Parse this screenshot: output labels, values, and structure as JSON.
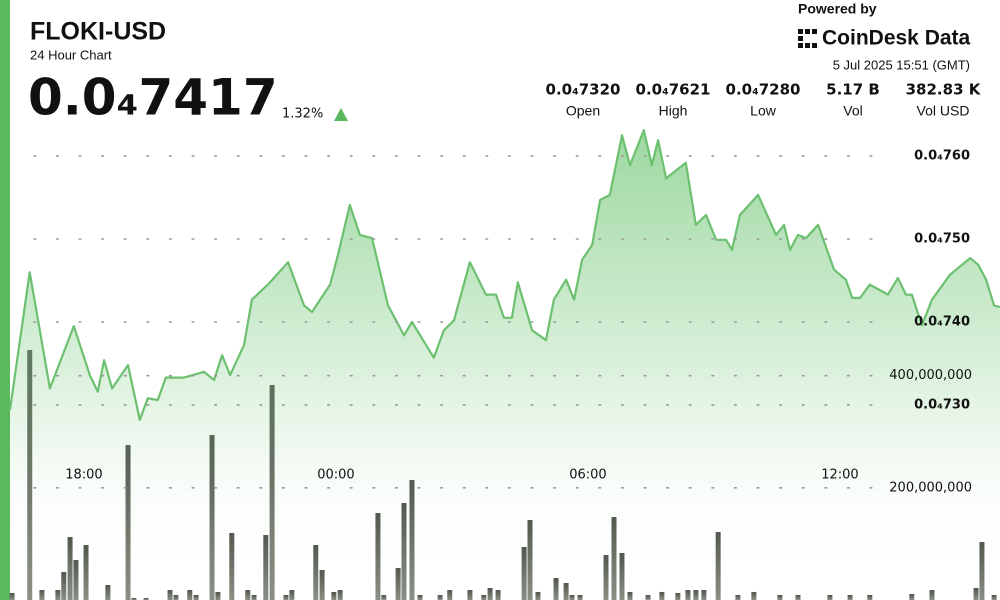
{
  "chart_data": {
    "type": "line",
    "title": "FLOKI-USD",
    "subtitle": "24 Hour Chart",
    "price": "0.0₄7417",
    "change": "1.32%",
    "powered_by": "Powered by",
    "brand": "CoinDesk Data",
    "timestamp": "5 Jul 2025 15:51 (GMT)",
    "stats": [
      {
        "value": "0.0₄7320",
        "label": "Open"
      },
      {
        "value": "0.0₄7621",
        "label": "High"
      },
      {
        "value": "0.0₄7280",
        "label": "Low"
      },
      {
        "value": "5.17 B",
        "label": "Vol"
      },
      {
        "value": "382.83 K",
        "label": "Vol USD"
      }
    ],
    "xlim": [
      16.24,
      39.81
    ],
    "xticks": [
      {
        "value": 18,
        "label": "18:00"
      },
      {
        "value": 24,
        "label": "00:00"
      },
      {
        "value": 30,
        "label": "06:00"
      },
      {
        "value": 36,
        "label": "12:00"
      }
    ],
    "ylim": [
      7.065e-05,
      7.788e-05
    ],
    "yticks": [
      {
        "value": 7.3e-05,
        "label": "0.0₄730"
      },
      {
        "value": 7.4e-05,
        "label": "0.0₄740"
      },
      {
        "value": 7.5e-05,
        "label": "0.0₄750"
      },
      {
        "value": 7.6e-05,
        "label": "0.0₄760"
      }
    ],
    "y2lim": [
      0,
      1070000000
    ],
    "y2ticks": [
      {
        "value": 200000000,
        "label": "200,000,000"
      },
      {
        "value": 400000000,
        "label": "400,000,000"
      }
    ],
    "grid": true,
    "series": [
      {
        "name": "Price",
        "type": "line",
        "color": "#6cc070",
        "x": [
          16.24,
          16.71,
          17.19,
          17.76,
          18.14,
          18.33,
          18.48,
          18.67,
          19.05,
          19.33,
          19.52,
          19.76,
          19.95,
          20.38,
          20.86,
          21.1,
          21.29,
          21.48,
          21.81,
          22.0,
          22.38,
          22.86,
          23.24,
          23.43,
          23.86,
          24.05,
          24.33,
          24.57,
          24.86,
          25.24,
          25.62,
          25.81,
          26.33,
          26.57,
          26.81,
          27.19,
          27.57,
          27.81,
          28.0,
          28.19,
          28.33,
          28.67,
          29.0,
          29.19,
          29.48,
          29.67,
          29.86,
          30.1,
          30.29,
          30.52,
          30.81,
          31.0,
          31.33,
          31.52,
          31.67,
          31.86,
          32.33,
          32.57,
          32.81,
          33.05,
          33.29,
          33.43,
          33.62,
          34.05,
          34.48,
          34.67,
          34.81,
          35.0,
          35.19,
          35.48,
          35.86,
          36.14,
          36.29,
          36.48,
          36.71,
          37.14,
          37.38,
          37.57,
          37.71,
          37.95,
          38.19,
          38.62,
          39.1,
          39.29,
          39.48,
          39.67,
          39.81
        ],
        "values": [
          7.294e-05,
          7.46e-05,
          7.32e-05,
          7.395e-05,
          7.336e-05,
          7.316e-05,
          7.354e-05,
          7.32e-05,
          7.348e-05,
          7.282e-05,
          7.308e-05,
          7.306e-05,
          7.333e-05,
          7.333e-05,
          7.34e-05,
          7.33e-05,
          7.36e-05,
          7.336e-05,
          7.372e-05,
          7.427e-05,
          7.445e-05,
          7.472e-05,
          7.42e-05,
          7.412e-05,
          7.445e-05,
          7.481e-05,
          7.541e-05,
          7.505e-05,
          7.501e-05,
          7.42e-05,
          7.384e-05,
          7.4e-05,
          7.357e-05,
          7.39e-05,
          7.402e-05,
          7.472e-05,
          7.433e-05,
          7.433e-05,
          7.405e-05,
          7.405e-05,
          7.448e-05,
          7.39e-05,
          7.378e-05,
          7.427e-05,
          7.451e-05,
          7.427e-05,
          7.475e-05,
          7.493e-05,
          7.547e-05,
          7.553e-05,
          7.625e-05,
          7.589e-05,
          7.631e-05,
          7.589e-05,
          7.619e-05,
          7.573e-05,
          7.592e-05,
          7.517e-05,
          7.529e-05,
          7.499e-05,
          7.499e-05,
          7.487e-05,
          7.529e-05,
          7.553e-05,
          7.505e-05,
          7.517e-05,
          7.487e-05,
          7.505e-05,
          7.501e-05,
          7.517e-05,
          7.463e-05,
          7.451e-05,
          7.429e-05,
          7.429e-05,
          7.445e-05,
          7.433e-05,
          7.453e-05,
          7.433e-05,
          7.433e-05,
          7.396e-05,
          7.427e-05,
          7.457e-05,
          7.477e-05,
          7.469e-05,
          7.451e-05,
          7.42e-05,
          7.418e-05
        ]
      },
      {
        "name": "Volume",
        "type": "bar",
        "axis": "y2",
        "color": "#5d635a",
        "x": [
          16.29,
          16.71,
          17.0,
          17.38,
          17.52,
          17.67,
          17.81,
          18.05,
          18.57,
          19.05,
          19.19,
          19.48,
          20.05,
          20.19,
          20.52,
          20.67,
          21.05,
          21.19,
          21.52,
          21.9,
          22.05,
          22.33,
          22.48,
          22.81,
          22.95,
          23.52,
          23.67,
          23.95,
          24.1,
          25.0,
          25.14,
          25.48,
          25.62,
          25.81,
          26.0,
          26.48,
          26.71,
          27.19,
          27.52,
          27.67,
          27.86,
          28.48,
          28.62,
          28.81,
          29.24,
          29.48,
          29.62,
          29.81,
          30.43,
          30.62,
          30.81,
          31.0,
          31.43,
          31.76,
          32.14,
          32.38,
          32.57,
          32.76,
          33.1,
          33.57,
          33.95,
          34.57,
          35.0,
          35.76,
          36.24,
          36.71,
          37.71,
          38.19,
          39.24,
          39.38,
          39.67
        ],
        "values": [
          12500000,
          445800000,
          17800000,
          17800000,
          49900000,
          112300000,
          71300000,
          98100000,
          26700000,
          276400000,
          3600000,
          3600000,
          17800000,
          8900000,
          17800000,
          8900000,
          294200000,
          14300000,
          119500000,
          17800000,
          8900000,
          115900000,
          383400000,
          8900000,
          17800000,
          98100000,
          53500000,
          14300000,
          17800000,
          155100000,
          8900000,
          57100000,
          173000000,
          214000000,
          8900000,
          8900000,
          17800000,
          17800000,
          8900000,
          21400000,
          17800000,
          94500000,
          142700000,
          14300000,
          39200000,
          30300000,
          8900000,
          8900000,
          80200000,
          148000000,
          83800000,
          14300000,
          8900000,
          14300000,
          12500000,
          17800000,
          17800000,
          17800000,
          121300000,
          8900000,
          14300000,
          8900000,
          8900000,
          8900000,
          8900000,
          8900000,
          10700000,
          17800000,
          21400000,
          103400000,
          8900000
        ]
      }
    ]
  }
}
